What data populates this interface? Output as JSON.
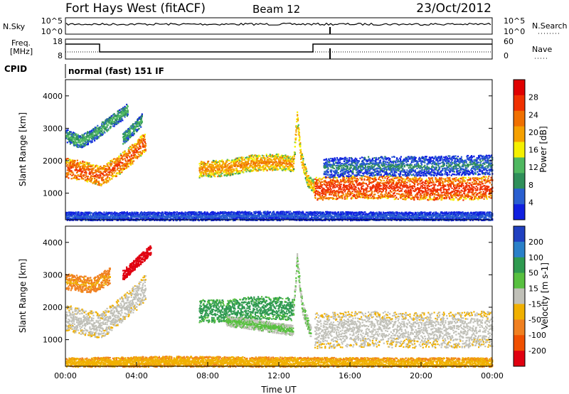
{
  "header": {
    "station": "Fort Hays West (fitACF)",
    "beam": "Beam 12",
    "date": "23/Oct/2012"
  },
  "noise_panel": {
    "left_label": "N.Sky",
    "right_label": "N.Search",
    "left_ticks": [
      "10^5",
      "10^0"
    ],
    "right_ticks": [
      "10^5",
      "10^0"
    ]
  },
  "freq_panel": {
    "left_label_line1": "Freq.",
    "left_label_line2": "[MHz]",
    "right_label": "Nave",
    "left_ticks": [
      "18",
      "8"
    ],
    "right_ticks": [
      "60",
      "0"
    ]
  },
  "cpid": {
    "label": "CPID",
    "value": "normal (fast) 151 IF"
  },
  "colors": {
    "power": [
      "#1020e0",
      "#2a5fd0",
      "#2f8f5a",
      "#4fb860",
      "#f5f000",
      "#f5a000",
      "#f07000",
      "#f03000",
      "#e00000"
    ],
    "velocity": [
      "#2040c0",
      "#2a80c8",
      "#2f9a50",
      "#58c040",
      "#c0c0b8",
      "#f0b000",
      "#f08020",
      "#f05000",
      "#e00010"
    ]
  },
  "chart_data": [
    {
      "type": "heatmap",
      "name": "power-panel",
      "xlabel": "",
      "ylabel": "Slant Range [km]",
      "xlim": [
        0,
        24
      ],
      "ylim": [
        180,
        4500
      ],
      "yticks": [
        "1000",
        "2000",
        "3000",
        "4000"
      ],
      "colorbar": {
        "label": "Power [dB]",
        "range": [
          0,
          32
        ],
        "ticks": [
          "4",
          "8",
          "12",
          "16",
          "20",
          "24",
          "28"
        ]
      },
      "bands": [
        {
          "name": "early-band",
          "points": [
            [
              0,
              1800
            ],
            [
              1,
              1700
            ],
            [
              2,
              1550
            ],
            [
              3,
              1900
            ],
            [
              4,
              2350
            ],
            [
              4.5,
              2650
            ]
          ],
          "width": 300,
          "level": 26
        },
        {
          "name": "early-upper-band",
          "points": [
            [
              0,
              2800
            ],
            [
              0.8,
              2600
            ],
            [
              1.5,
              2800
            ],
            [
              2.5,
              3200
            ],
            [
              3.5,
              3600
            ]
          ],
          "width": 200,
          "level": 12
        },
        {
          "name": "morning-streaks",
          "points": [
            [
              3.2,
              2700
            ],
            [
              3.8,
              3000
            ],
            [
              4.3,
              3300
            ]
          ],
          "width": 180,
          "level": 12
        },
        {
          "name": "midday-band",
          "points": [
            [
              7.5,
              1750
            ],
            [
              9,
              1800
            ],
            [
              10.5,
              1950
            ],
            [
              12,
              1980
            ],
            [
              12.8,
              1900
            ]
          ],
          "width": 250,
          "level": 22
        },
        {
          "name": "spike",
          "points": [
            [
              12.8,
              1900
            ],
            [
              13,
              3400
            ],
            [
              13.2,
              2200
            ],
            [
              13.6,
              1400
            ],
            [
              14,
              1200
            ]
          ],
          "width": 200,
          "level": 20
        },
        {
          "name": "night-band",
          "points": [
            [
              14,
              1150
            ],
            [
              16,
              1200
            ],
            [
              18,
              1200
            ],
            [
              20,
              1150
            ],
            [
              22,
              1150
            ],
            [
              24,
              1200
            ]
          ],
          "width": 350,
          "level": 28
        },
        {
          "name": "night-upper",
          "points": [
            [
              14.5,
              1800
            ],
            [
              17,
              1850
            ],
            [
              20,
              1850
            ],
            [
              24,
              1900
            ]
          ],
          "width": 300,
          "level": 8
        },
        {
          "name": "ground",
          "points": [
            [
              0,
              300
            ],
            [
              6,
              300
            ],
            [
              12,
              320
            ],
            [
              18,
              300
            ],
            [
              24,
              300
            ]
          ],
          "width": 140,
          "level": 6
        }
      ]
    },
    {
      "type": "heatmap",
      "name": "velocity-panel",
      "xlabel": "Time UT",
      "ylabel": "Slant Range [km]",
      "xlim": [
        0,
        24
      ],
      "ylim": [
        180,
        4500
      ],
      "xticks": [
        "00:00",
        "04:00",
        "08:00",
        "12:00",
        "16:00",
        "20:00",
        "00:00"
      ],
      "yticks": [
        "1000",
        "2000",
        "3000",
        "4000"
      ],
      "colorbar": {
        "label": "Velocity [m s-1]",
        "range": [
          -250,
          250
        ],
        "ticks": [
          "200",
          "100",
          "50",
          "15",
          "-15",
          "-50",
          "-100",
          "-200"
        ]
      },
      "bands": [
        {
          "name": "early-band",
          "points": [
            [
              0,
              1700
            ],
            [
              1,
              1550
            ],
            [
              2,
              1450
            ],
            [
              3,
              1900
            ],
            [
              4,
              2350
            ],
            [
              4.5,
              2650
            ]
          ],
          "width": 400,
          "level": 0
        },
        {
          "name": "early-upper",
          "points": [
            [
              0,
              2800
            ],
            [
              1.5,
              2700
            ],
            [
              2.5,
              3000
            ]
          ],
          "width": 250,
          "level": -80
        },
        {
          "name": "red-spots",
          "points": [
            [
              3.2,
              3000
            ],
            [
              4,
              3400
            ],
            [
              4.8,
              3800
            ]
          ],
          "width": 160,
          "level": -220
        },
        {
          "name": "midday-band",
          "points": [
            [
              7.5,
              1900
            ],
            [
              9,
              1900
            ],
            [
              10.5,
              2000
            ],
            [
              12,
              2000
            ],
            [
              12.8,
              1950
            ]
          ],
          "width": 350,
          "level": 110
        },
        {
          "name": "midday-lower",
          "points": [
            [
              9,
              1600
            ],
            [
              11,
              1450
            ],
            [
              12.8,
              1300
            ]
          ],
          "width": 160,
          "level": 40
        },
        {
          "name": "spike",
          "points": [
            [
              12.8,
              1900
            ],
            [
              13,
              3500
            ],
            [
              13.3,
              2000
            ],
            [
              13.8,
              1200
            ]
          ],
          "width": 200,
          "level": 40
        },
        {
          "name": "night-band",
          "points": [
            [
              14,
              1300
            ],
            [
              17,
              1350
            ],
            [
              20,
              1300
            ],
            [
              24,
              1350
            ]
          ],
          "width": 550,
          "level": 0
        },
        {
          "name": "ground",
          "points": [
            [
              0,
              300
            ],
            [
              6,
              350
            ],
            [
              12,
              320
            ],
            [
              18,
              300
            ],
            [
              24,
              300
            ]
          ],
          "width": 160,
          "level": -60
        }
      ]
    }
  ]
}
